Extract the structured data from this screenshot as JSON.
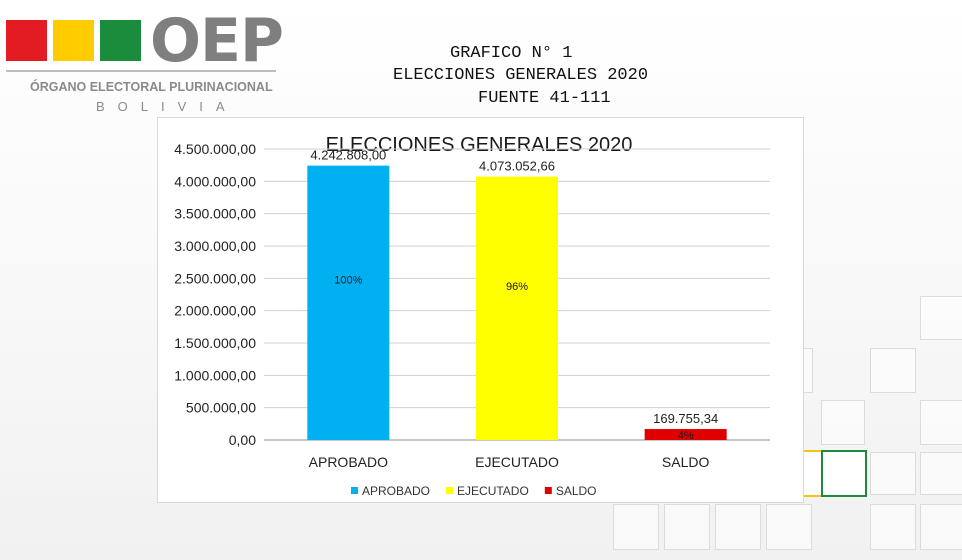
{
  "logo": {
    "colors": [
      "#e31b23",
      "#ffcc00",
      "#1a8c3c"
    ],
    "wordmark": "OEP",
    "organization": "ÓRGANO ELECTORAL PLURINACIONAL",
    "country": "BOLIVIA"
  },
  "header": {
    "line1": "GRAFICO N° 1",
    "line2": "ELECCIONES GENERALES 2020",
    "line3": "FUENTE 41-111"
  },
  "chart_data": {
    "type": "bar",
    "title": "ELECCIONES GENERALES 2020",
    "categories": [
      "APROBADO",
      "EJECUTADO",
      "SALDO"
    ],
    "values": [
      4242808.0,
      4073052.66,
      169755.34
    ],
    "value_labels": [
      "4.242.808,00",
      "4.073.052,66",
      "169.755,34"
    ],
    "percent_labels": [
      "100%",
      "96%",
      "4%"
    ],
    "colors": [
      "#00b0f0",
      "#ffff00",
      "#e00000"
    ],
    "ylim": [
      0,
      4500000
    ],
    "yticks": [
      "0,00",
      "500.000,00",
      "1.000.000,00",
      "1.500.000,00",
      "2.000.000,00",
      "2.500.000,00",
      "3.000.000,00",
      "3.500.000,00",
      "4.000.000,00",
      "4.500.000,00"
    ],
    "grid": true,
    "legend": {
      "position": "bottom",
      "entries": [
        "APROBADO",
        "EJECUTADO",
        "SALDO"
      ]
    }
  }
}
